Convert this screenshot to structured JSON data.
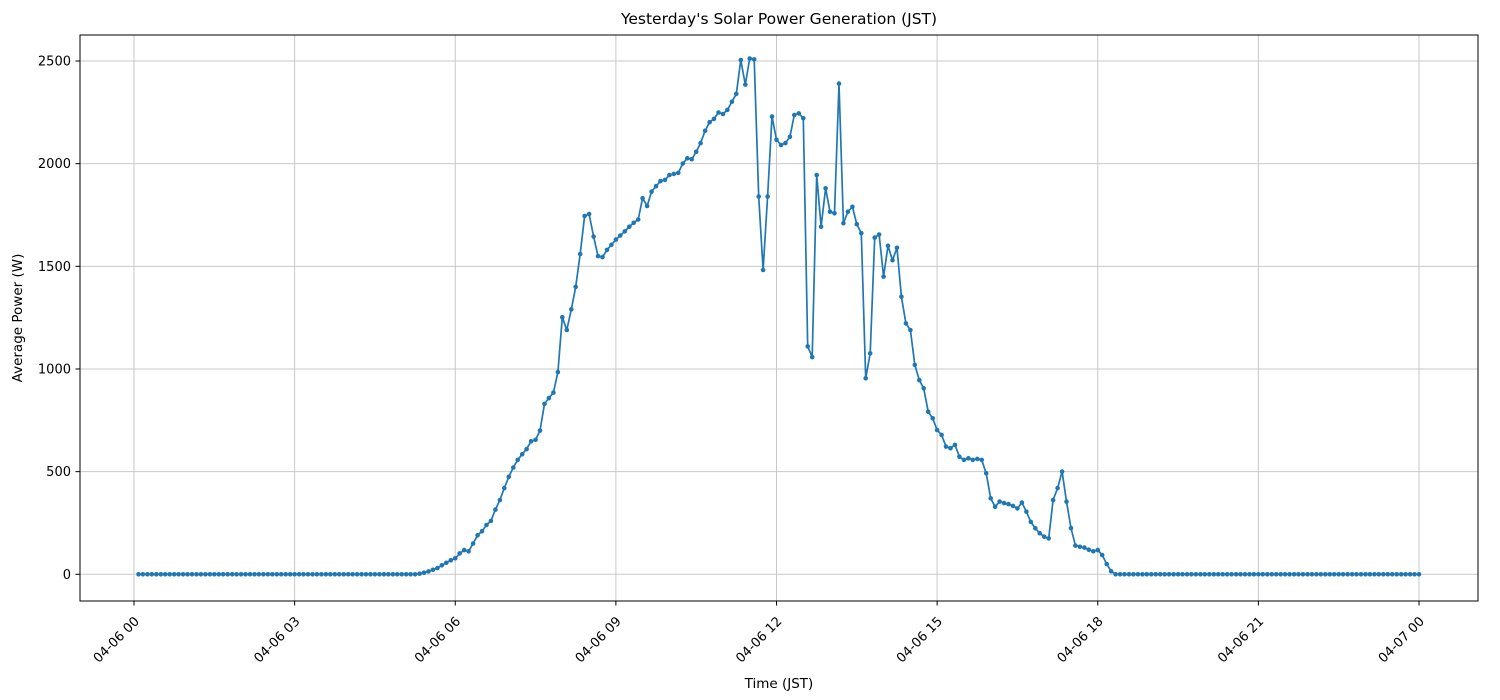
{
  "chart_data": {
    "type": "line",
    "title": "Yesterday's Solar Power Generation (JST)",
    "xlabel": "Time (JST)",
    "ylabel": "Average Power (W)",
    "legend": null,
    "grid": true,
    "line_color": "#1f77b4",
    "marker": "point",
    "x_tick_labels": [
      "04-06 00",
      "04-06 03",
      "04-06 06",
      "04-06 09",
      "04-06 12",
      "04-06 15",
      "04-06 18",
      "04-06 21",
      "04-07 00"
    ],
    "x_tick_minutes": [
      0,
      180,
      360,
      540,
      720,
      900,
      1080,
      1260,
      1440
    ],
    "y_ticks": [
      0,
      500,
      1000,
      1500,
      2000,
      2500
    ],
    "x_start_minutes": 5,
    "x_step_minutes": 5,
    "values": [
      0,
      0,
      0,
      0,
      0,
      0,
      0,
      0,
      0,
      0,
      0,
      0,
      0,
      0,
      0,
      0,
      0,
      0,
      0,
      0,
      0,
      0,
      0,
      0,
      0,
      0,
      0,
      0,
      0,
      0,
      0,
      0,
      0,
      0,
      0,
      0,
      0,
      0,
      0,
      0,
      0,
      0,
      0,
      0,
      0,
      0,
      0,
      0,
      0,
      0,
      0,
      0,
      0,
      0,
      0,
      0,
      0,
      0,
      0,
      0,
      0,
      0,
      0,
      3,
      8,
      14,
      22,
      30,
      44,
      56,
      68,
      78,
      102,
      118,
      112,
      150,
      190,
      210,
      240,
      260,
      315,
      362,
      420,
      475,
      520,
      557,
      585,
      610,
      648,
      655,
      700,
      830,
      858,
      885,
      985,
      1252,
      1190,
      1290,
      1400,
      1560,
      1745,
      1755,
      1645,
      1550,
      1545,
      1580,
      1605,
      1630,
      1650,
      1670,
      1693,
      1712,
      1728,
      1832,
      1794,
      1864,
      1890,
      1915,
      1921,
      1945,
      1950,
      1955,
      2001,
      2026,
      2021,
      2058,
      2100,
      2160,
      2202,
      2218,
      2249,
      2242,
      2262,
      2302,
      2340,
      2505,
      2385,
      2512,
      2508,
      1840,
      1482,
      1840,
      2229,
      2116,
      2091,
      2100,
      2131,
      2237,
      2245,
      2221,
      1110,
      1058,
      1945,
      1693,
      1880,
      1766,
      1758,
      2390,
      1710,
      1766,
      1790,
      1705,
      1662,
      955,
      1076,
      1640,
      1655,
      1450,
      1600,
      1530,
      1590,
      1352,
      1222,
      1190,
      1020,
      946,
      906,
      792,
      760,
      703,
      679,
      622,
      614,
      630,
      573,
      557,
      565,
      557,
      562,
      557,
      492,
      370,
      329,
      354,
      347,
      342,
      333,
      321,
      349,
      305,
      255,
      224,
      200,
      183,
      175,
      362,
      420,
      500,
      354,
      225,
      140,
      134,
      130,
      120,
      112,
      118,
      94,
      50,
      15,
      0,
      0,
      0,
      0,
      0,
      0,
      0,
      0,
      0,
      0,
      0,
      0,
      0,
      0,
      0,
      0,
      0,
      0,
      0,
      0,
      0,
      0,
      0,
      0,
      0,
      0,
      0,
      0,
      0,
      0,
      0,
      0,
      0,
      0,
      0,
      0,
      0,
      0,
      0,
      0,
      0,
      0,
      0,
      0,
      0,
      0,
      0,
      0,
      0,
      0,
      0,
      0,
      0,
      0,
      0,
      0,
      0,
      0,
      0,
      0,
      0,
      0,
      0,
      0,
      0,
      0,
      0,
      0,
      0
    ]
  }
}
